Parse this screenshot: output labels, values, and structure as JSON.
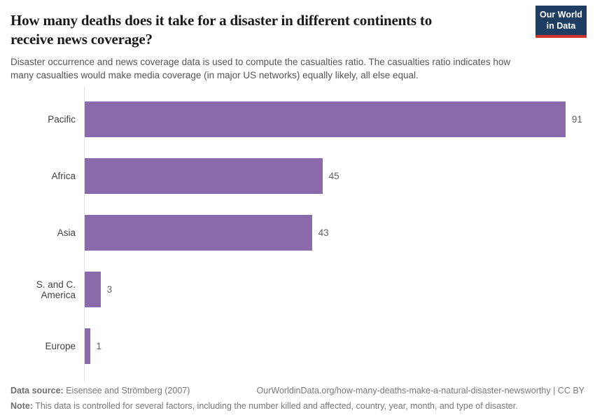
{
  "header": {
    "title_lines": [
      "How many deaths does it take for a disaster in different continents to",
      "receive news coverage?"
    ],
    "logo": {
      "line1": "Our World",
      "line2": "in Data",
      "bg_color": "#1d3d63",
      "accent_color": "#cf342b"
    }
  },
  "chart_data": {
    "type": "bar",
    "orientation": "horizontal",
    "title": "How many deaths does it take for a disaster in different continents to receive news coverage?",
    "subtitle": "Disaster occurrence and news coverage data is used to compute the casualties ratio. The casualties ratio indicates how many casualties would make media coverage (in major US networks) equally likely, all else equal.",
    "categories": [
      "Pacific",
      "Africa",
      "Asia",
      "S. and C. America",
      "Europe"
    ],
    "values": [
      91,
      45,
      43,
      3,
      1
    ],
    "xlabel": "",
    "ylabel": "",
    "xlim": [
      0,
      95
    ],
    "grid": false,
    "legend": false,
    "value_labels_shown": true,
    "bar_color": "#8B6AAC",
    "axis_line_color": "#e2e2e2"
  },
  "footer": {
    "data_source_label": "Data source:",
    "data_source": "Eisensee and Strömberg (2007)",
    "attribution": "OurWorldinData.org/how-many-deaths-make-a-natural-disaster-newsworthy | CC BY",
    "note_label": "Note:",
    "note": "This data is controlled for several factors, including the number killed and affected, country, year, month, and type of disaster."
  }
}
